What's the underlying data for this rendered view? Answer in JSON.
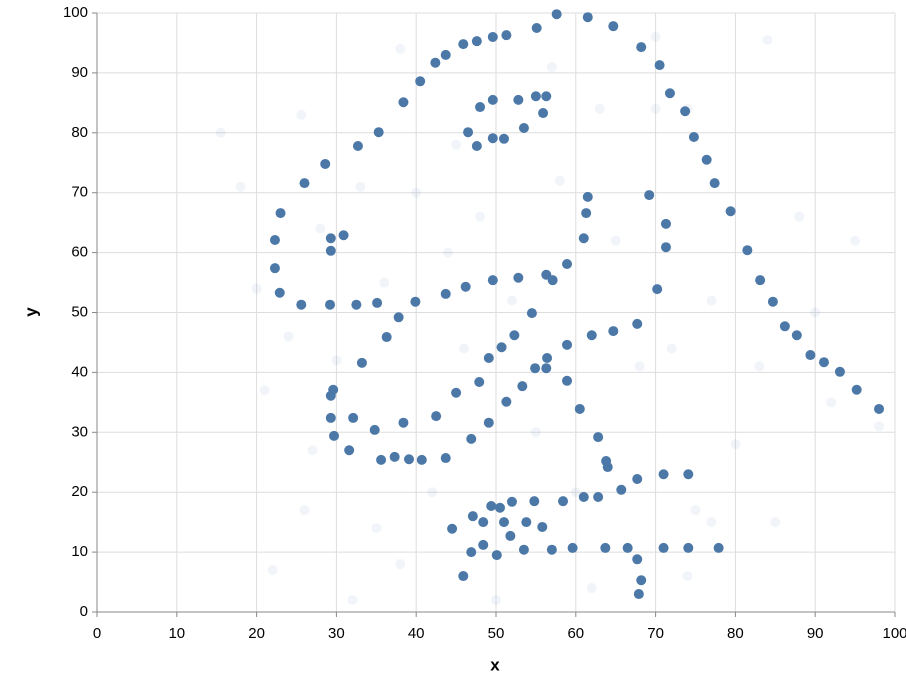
{
  "chart_data": {
    "type": "scatter",
    "x_label": "x",
    "y_label": "y",
    "xlim": [
      0,
      100
    ],
    "ylim": [
      0,
      100
    ],
    "xticks": [
      0,
      10,
      20,
      30,
      40,
      50,
      60,
      70,
      80,
      90,
      100
    ],
    "yticks": [
      0,
      10,
      20,
      30,
      40,
      50,
      60,
      70,
      80,
      90,
      100
    ],
    "grid": true,
    "series": [
      {
        "color": "#4c78a8",
        "opacity": 0.08,
        "x": [
          25.6,
          26,
          15.5,
          18,
          21,
          22,
          84,
          95,
          98,
          38,
          40,
          57,
          70,
          74,
          77,
          75,
          77,
          52,
          60,
          42,
          33,
          35,
          45,
          63,
          68,
          30,
          88,
          80,
          92,
          20,
          28,
          44,
          55,
          65,
          72,
          48,
          36,
          58,
          62,
          38,
          50,
          32,
          74,
          90,
          83,
          24,
          27,
          85,
          70,
          46
        ],
        "values": [
          83,
          17,
          80,
          71,
          37,
          7,
          95.5,
          62,
          31,
          94,
          70,
          91,
          84,
          84,
          52,
          17,
          15,
          52,
          20,
          20,
          71,
          14,
          78,
          84,
          41,
          42,
          66,
          28,
          35,
          54,
          64,
          60,
          30,
          62,
          44,
          66,
          55,
          72,
          4,
          8,
          2,
          2,
          6,
          50,
          41,
          46,
          27,
          15,
          96,
          44
        ]
      },
      {
        "color": "#4c78a8",
        "opacity": 1,
        "x": [
          57.6,
          61.5,
          64.7,
          55.1,
          51.3,
          49.6,
          47.6,
          45.9,
          43.7,
          42.4,
          68.2,
          70.5,
          71.8,
          73.7,
          74.8,
          76.4,
          77.4,
          79.4,
          81.5,
          83.1,
          84.7,
          86.2,
          87.7,
          89.4,
          91.1,
          93.1,
          95.2,
          98,
          40.5,
          38.4,
          35.3,
          32.7,
          28.6,
          26,
          23,
          22.3,
          22.3,
          22.9,
          25.6,
          29.2,
          29.3,
          30.9,
          29.3,
          32.5,
          35.1,
          37.8,
          39.9,
          36.3,
          33.2,
          29.6,
          29.3,
          29.3,
          29.7,
          32.1,
          31.6,
          34.8,
          38.4,
          35.6,
          37.3,
          39.1,
          40.7,
          43.7,
          42.5,
          45,
          43.7,
          46.2,
          49.6,
          52.8,
          56.3,
          57.1,
          58.9,
          61,
          61.3,
          61.5,
          54.5,
          52.3,
          50.7,
          49.1,
          47.9,
          46.9,
          49.1,
          51.3,
          53.3,
          54.9,
          56.3,
          56.4,
          58.9,
          58.9,
          60.5,
          62,
          64.7,
          67.7,
          70.2,
          69.2,
          71.3,
          71.3,
          46.5,
          47.6,
          49.6,
          51,
          53.5,
          48,
          49.6,
          52.8,
          55,
          56.3,
          55.9,
          62.8,
          63.8,
          64,
          61,
          62.8,
          65.7,
          67.7,
          71,
          74.1,
          58.4,
          54.8,
          52,
          49.4,
          50.5,
          47.1,
          48.4,
          51,
          53.8,
          55.8,
          44.5,
          51.8,
          48.4,
          46.9,
          50.1,
          53.5,
          57,
          59.6,
          63.7,
          66.5,
          71,
          74.1,
          77.9,
          67.7,
          68.2,
          67.9,
          45.9
        ],
        "values": [
          99.8,
          99.3,
          97.8,
          97.5,
          96.3,
          96,
          95.3,
          94.8,
          93,
          91.7,
          94.3,
          91.3,
          86.6,
          83.6,
          79.3,
          75.5,
          71.6,
          66.9,
          60.4,
          55.4,
          51.8,
          47.7,
          46.2,
          42.9,
          41.7,
          40.1,
          37.1,
          33.9,
          88.6,
          85.1,
          80.1,
          77.8,
          74.8,
          71.6,
          66.6,
          62.1,
          57.4,
          53.3,
          51.3,
          51.3,
          62.4,
          62.9,
          60.3,
          51.3,
          51.6,
          49.2,
          51.8,
          45.9,
          41.6,
          37.1,
          36.1,
          32.4,
          29.4,
          32.4,
          27,
          30.4,
          31.6,
          25.4,
          25.9,
          25.5,
          25.4,
          25.7,
          32.7,
          36.6,
          53.1,
          54.3,
          55.4,
          55.8,
          56.3,
          55.4,
          58.1,
          62.4,
          66.6,
          69.3,
          49.9,
          46.2,
          44.2,
          42.4,
          38.4,
          28.9,
          31.6,
          35.1,
          37.7,
          40.7,
          40.7,
          42.4,
          44.6,
          38.6,
          33.9,
          46.2,
          46.9,
          48.1,
          53.9,
          69.6,
          64.8,
          60.9,
          80.1,
          77.8,
          79.1,
          79,
          80.8,
          84.3,
          85.5,
          85.5,
          86.1,
          86.1,
          83.3,
          29.2,
          25.2,
          24.2,
          19.2,
          19.2,
          20.4,
          22.2,
          23,
          23,
          18.5,
          18.5,
          18.4,
          17.7,
          17.4,
          16,
          15,
          15,
          15,
          14.2,
          13.9,
          12.7,
          11.2,
          10,
          9.5,
          10.4,
          10.4,
          10.7,
          10.7,
          10.7,
          10.7,
          10.7,
          10.7,
          8.8,
          5.3,
          3,
          6
        ]
      }
    ]
  }
}
